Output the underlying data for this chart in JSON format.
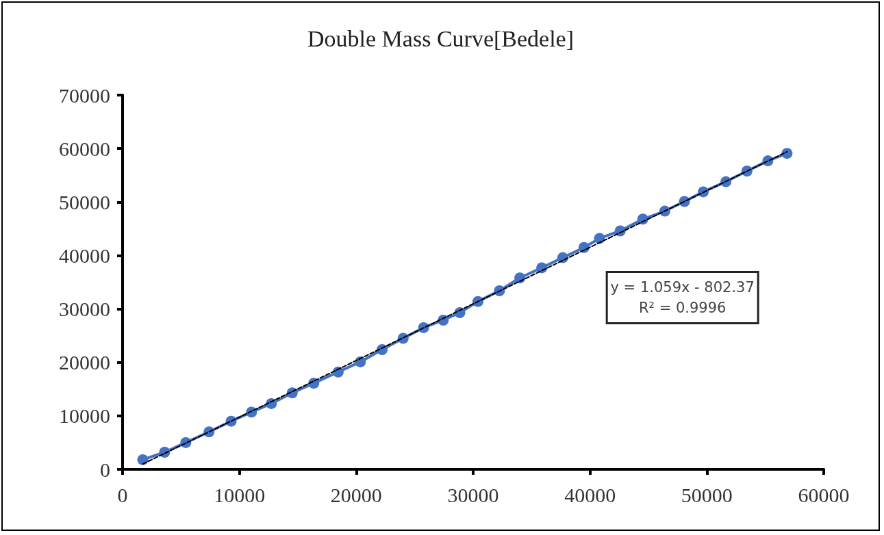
{
  "chart_data": {
    "type": "line",
    "title": "Double Mass Curve[Bedele]",
    "xlim": [
      0,
      60000
    ],
    "xticks": [
      0,
      10000,
      20000,
      30000,
      40000,
      50000,
      60000
    ],
    "ylim": [
      0,
      70000
    ],
    "yticks": [
      0,
      10000,
      20000,
      30000,
      40000,
      50000,
      60000,
      70000
    ],
    "grid": false,
    "series": [
      {
        "color": "#4472c4",
        "marker": "circle",
        "line_style": "solid",
        "x": [
          1730,
          3600,
          5410,
          7400,
          9290,
          11030,
          12730,
          14520,
          16360,
          18450,
          20350,
          22210,
          24010,
          25760,
          27440,
          28860,
          30410,
          32250,
          33990,
          35870,
          37670,
          39490,
          40810,
          42580,
          44520,
          46400,
          48080,
          49690,
          51630,
          53430,
          55220,
          56860
        ],
        "values": [
          1800,
          3200,
          5000,
          7000,
          9000,
          10700,
          12300,
          14300,
          16100,
          18200,
          20100,
          22400,
          24500,
          26500,
          27900,
          29300,
          31400,
          33400,
          35800,
          37700,
          39600,
          41500,
          43200,
          44600,
          46800,
          48300,
          50100,
          51900,
          53800,
          55800,
          57700,
          59100
        ]
      },
      {
        "type": "line",
        "color": "#000000",
        "marker": "none",
        "line_style": "dashed",
        "x": [
          1730,
          56860
        ],
        "values": [
          1000,
          59400
        ]
      }
    ],
    "annotations": [
      "y = 1.059x - 802.37",
      "R² = 0.9996"
    ]
  }
}
